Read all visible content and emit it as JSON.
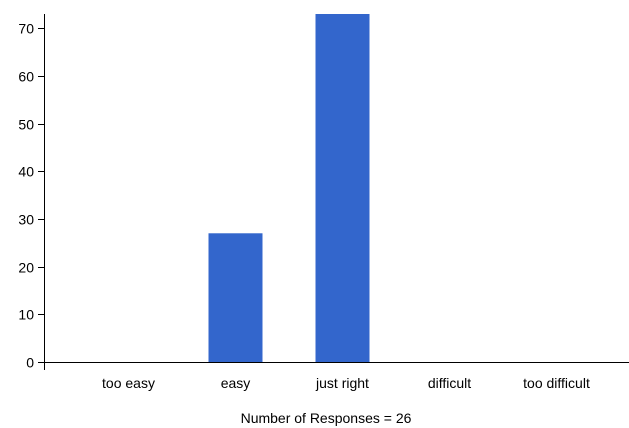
{
  "chart_data": {
    "type": "bar",
    "categories": [
      "too easy",
      "easy",
      "just right",
      "difficult",
      "too difficult"
    ],
    "values": [
      0,
      27,
      73,
      0,
      0
    ],
    "xlabel": "Number of Responses = 26",
    "ylabel": "",
    "ylim": [
      0,
      73
    ],
    "yticks": [
      0,
      10,
      20,
      30,
      40,
      50,
      60,
      70
    ],
    "grid": false,
    "legend": "none",
    "bar_color": "#3366cc"
  }
}
